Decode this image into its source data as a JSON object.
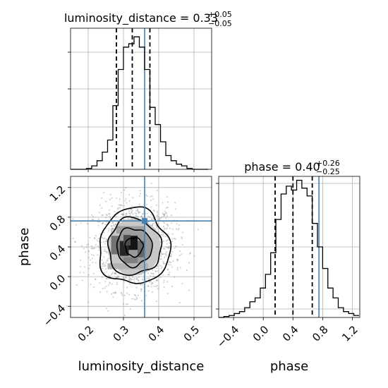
{
  "chart_data": {
    "type": "corner",
    "parameters": [
      "luminosity_distance",
      "phase"
    ],
    "truth": {
      "luminosity_distance": 0.36,
      "phase": 0.75
    },
    "colors": {
      "hist": "#000000",
      "truth": "#4682b4",
      "grid": "#b0b0b0",
      "scatter": "#808080"
    },
    "grid": true,
    "panels": [
      {
        "id": "luminosity_distance-marginal",
        "type": "histogram",
        "title_prefix": "luminosity_distance = ",
        "median": "0.33",
        "err_plus": "+0.05",
        "err_minus": "−0.05",
        "quantiles": [
          0.28,
          0.325,
          0.375
        ],
        "xlim": [
          0.15,
          0.55
        ],
        "bin_edges": [
          0.15,
          0.165,
          0.18,
          0.195,
          0.21,
          0.225,
          0.24,
          0.255,
          0.27,
          0.285,
          0.3,
          0.315,
          0.33,
          0.345,
          0.36,
          0.375,
          0.39,
          0.405,
          0.42,
          0.435,
          0.45,
          0.465,
          0.48,
          0.495,
          0.51,
          0.525,
          0.54
        ],
        "counts": [
          0,
          0,
          0,
          0.5,
          2,
          5,
          10,
          17,
          37,
          58,
          71,
          73,
          77,
          71,
          58,
          36,
          26,
          16,
          8,
          5,
          3,
          2,
          0.5,
          0,
          0,
          0
        ],
        "ymax": 82
      },
      {
        "id": "phase-marginal",
        "type": "histogram",
        "title_prefix": "phase = ",
        "median": "0.40",
        "err_plus": "+0.26",
        "err_minus": "−0.25",
        "quantiles": [
          0.16,
          0.4,
          0.66
        ],
        "xlim": [
          -0.6,
          1.3
        ],
        "bin_edges": [
          -0.6,
          -0.53,
          -0.46,
          -0.39,
          -0.32,
          -0.25,
          -0.18,
          -0.11,
          -0.04,
          0.03,
          0.1,
          0.17,
          0.24,
          0.31,
          0.38,
          0.45,
          0.52,
          0.59,
          0.66,
          0.73,
          0.8,
          0.87,
          0.94,
          1.01,
          1.08,
          1.15,
          1.22,
          1.29
        ],
        "counts": [
          0,
          0.5,
          1,
          2,
          3,
          5,
          8,
          10,
          15,
          22,
          33,
          50,
          63,
          67,
          65,
          70,
          66,
          62,
          48,
          36,
          25,
          15,
          10,
          5,
          3,
          2,
          1
        ],
        "ymax": 72
      },
      {
        "id": "joint-2d",
        "type": "2d-density",
        "xlim": [
          0.15,
          0.55
        ],
        "ylim": [
          -0.55,
          1.35
        ],
        "center": [
          0.33,
          0.4
        ],
        "sigma": [
          0.05,
          0.255
        ],
        "contour_levels_sigma": [
          0.5,
          1.0,
          1.5,
          2.0
        ],
        "density_cells": [
          {
            "x0": 0.29,
            "x1": 0.315,
            "y0": 0.28,
            "y1": 0.48,
            "shade": 0.15
          },
          {
            "x0": 0.315,
            "x1": 0.34,
            "y0": 0.36,
            "y1": 0.55,
            "shade": 0.08
          },
          {
            "x0": 0.3,
            "x1": 0.32,
            "y0": 0.42,
            "y1": 0.56,
            "shade": 0.3
          },
          {
            "x0": 0.265,
            "x1": 0.29,
            "y0": 0.3,
            "y1": 0.55,
            "shade": 0.45
          },
          {
            "x0": 0.34,
            "x1": 0.36,
            "y0": 0.26,
            "y1": 0.48,
            "shade": 0.4
          },
          {
            "x0": 0.3,
            "x1": 0.34,
            "y0": 0.18,
            "y1": 0.26,
            "shade": 0.5
          },
          {
            "x0": 0.28,
            "x1": 0.36,
            "y0": 0.58,
            "y1": 0.68,
            "shade": 0.62
          },
          {
            "x0": 0.255,
            "x1": 0.37,
            "y0": 0.1,
            "y1": 0.18,
            "shade": 0.7
          }
        ]
      }
    ],
    "x_axes": [
      {
        "label": "luminosity_distance",
        "ticks": [
          0.2,
          0.3,
          0.4,
          0.5
        ],
        "tick_labels": [
          "0.2",
          "0.3",
          "0.4",
          "0.5"
        ]
      },
      {
        "label": "phase",
        "ticks": [
          -0.4,
          0.0,
          0.4,
          0.8,
          1.2
        ],
        "tick_labels": [
          "−0.4",
          "0.0",
          "0.4",
          "0.8",
          "1.2"
        ]
      }
    ],
    "y_axes": [
      {
        "label": "phase",
        "ticks": [
          -0.4,
          0.0,
          0.4,
          0.8,
          1.2
        ],
        "tick_labels": [
          "−0.4",
          "0.0",
          "0.4",
          "0.8",
          "1.2"
        ]
      }
    ]
  }
}
